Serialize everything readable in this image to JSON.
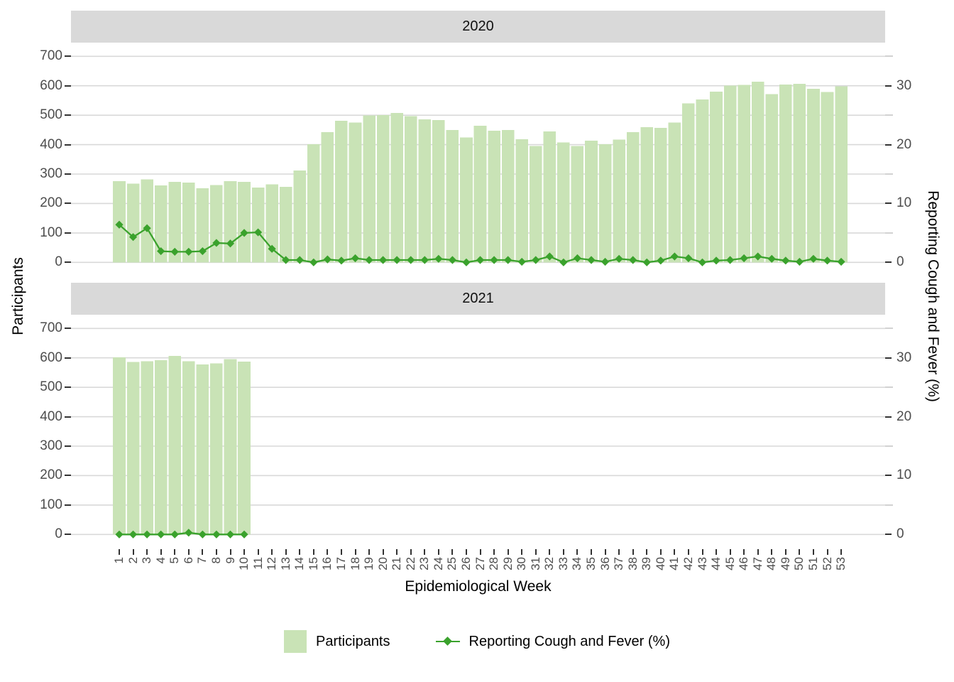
{
  "figure": {
    "x_title": "Epidemiological Week",
    "y_left_title": "Participants",
    "y_right_title": "Reporting Cough and Fever (%)"
  },
  "facets": [
    {
      "label": "2020"
    },
    {
      "label": "2021"
    }
  ],
  "axes": {
    "y_left_ticks": [
      0,
      100,
      200,
      300,
      400,
      500,
      600,
      700
    ],
    "y_right_ticks": [
      0,
      10,
      20,
      30
    ],
    "y_right_minor_ticks": [
      5,
      15,
      25,
      35
    ],
    "weeks": [
      1,
      2,
      3,
      4,
      5,
      6,
      7,
      8,
      9,
      10,
      11,
      12,
      13,
      14,
      15,
      16,
      17,
      18,
      19,
      20,
      21,
      22,
      23,
      24,
      25,
      26,
      27,
      28,
      29,
      30,
      31,
      32,
      33,
      34,
      35,
      36,
      37,
      38,
      39,
      40,
      41,
      42,
      43,
      44,
      45,
      46,
      47,
      48,
      49,
      50,
      51,
      52,
      53
    ]
  },
  "legend": {
    "participants_label": "Participants",
    "line_label": "Reporting Cough and Fever (%)"
  },
  "colors": {
    "bar_fill": "#c9e3b6",
    "line": "#3aa22c",
    "strip_bg": "#d9d9d9",
    "grid": "#d9d9d9",
    "tick_text": "#4d4d4d",
    "title_text": "#000000"
  },
  "chart_data": [
    {
      "type": "bar",
      "facet": "2020",
      "title": "2020",
      "xlabel": "Epidemiological Week",
      "ylabel_left": "Participants",
      "ylabel_right": "Reporting Cough and Fever (%)",
      "ylim_left": [
        0,
        700
      ],
      "ylim_right": [
        0,
        35
      ],
      "grid": true,
      "legend_position": "bottom",
      "x": [
        1,
        2,
        3,
        4,
        5,
        6,
        7,
        8,
        9,
        10,
        11,
        12,
        13,
        14,
        15,
        16,
        17,
        18,
        19,
        20,
        21,
        22,
        23,
        24,
        25,
        26,
        27,
        28,
        29,
        30,
        31,
        32,
        33,
        34,
        35,
        36,
        37,
        38,
        39,
        40,
        41,
        42,
        43,
        44,
        45,
        46,
        47,
        48,
        49,
        50,
        51,
        52,
        53
      ],
      "series": [
        {
          "name": "Participants",
          "type": "bar",
          "axis": "left",
          "values": [
            276,
            268,
            282,
            261,
            273,
            271,
            252,
            263,
            276,
            274,
            254,
            265,
            257,
            312,
            401,
            442,
            481,
            475,
            499,
            500,
            508,
            497,
            486,
            483,
            450,
            424,
            464,
            447,
            450,
            418,
            395,
            445,
            407,
            395,
            413,
            401,
            417,
            442,
            459,
            457,
            475,
            540,
            553,
            580,
            600,
            603,
            614,
            571,
            604,
            606,
            590,
            579,
            598
          ]
        },
        {
          "name": "Reporting Cough and Fever (%)",
          "type": "line",
          "axis": "right",
          "values": [
            6.4,
            4.3,
            5.8,
            1.9,
            1.8,
            1.8,
            1.9,
            3.3,
            3.2,
            5.0,
            5.1,
            2.3,
            0.4,
            0.4,
            0.0,
            0.5,
            0.3,
            0.7,
            0.4,
            0.4,
            0.4,
            0.4,
            0.4,
            0.6,
            0.4,
            0.0,
            0.4,
            0.4,
            0.4,
            0.1,
            0.4,
            1.0,
            0.0,
            0.7,
            0.4,
            0.1,
            0.6,
            0.4,
            0.0,
            0.3,
            1.0,
            0.7,
            0.0,
            0.3,
            0.4,
            0.7,
            1.0,
            0.6,
            0.3,
            0.1,
            0.6,
            0.3,
            0.1
          ]
        }
      ]
    },
    {
      "type": "bar",
      "facet": "2021",
      "title": "2021",
      "xlabel": "Epidemiological Week",
      "ylabel_left": "Participants",
      "ylabel_right": "Reporting Cough and Fever (%)",
      "ylim_left": [
        0,
        700
      ],
      "ylim_right": [
        0,
        35
      ],
      "grid": true,
      "legend_position": "bottom",
      "x": [
        1,
        2,
        3,
        4,
        5,
        6,
        7,
        8,
        9,
        10
      ],
      "series": [
        {
          "name": "Participants",
          "type": "bar",
          "axis": "left",
          "values": [
            602,
            586,
            588,
            592,
            607,
            589,
            578,
            581,
            596,
            587
          ]
        },
        {
          "name": "Reporting Cough and Fever (%)",
          "type": "line",
          "axis": "right",
          "values": [
            0,
            0,
            0,
            0,
            0,
            0.3,
            0,
            0,
            0,
            0
          ]
        }
      ]
    }
  ]
}
